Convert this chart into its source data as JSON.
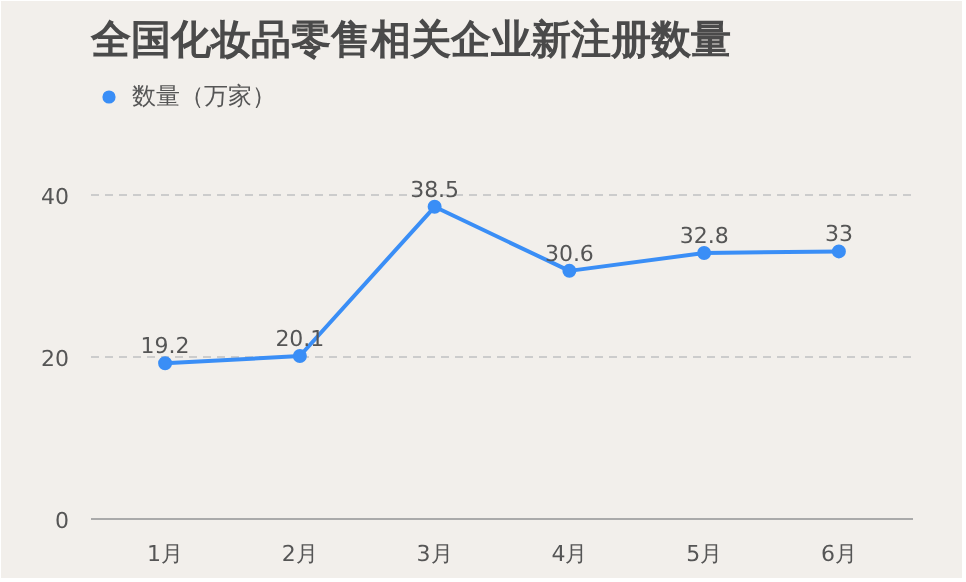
{
  "chart_data": {
    "type": "line",
    "title": "全国化妆品零售相关企业新注册数量",
    "categories": [
      "1月",
      "2月",
      "3月",
      "4月",
      "5月",
      "6月"
    ],
    "series": [
      {
        "name": "数量（万家）",
        "color": "#3a8ef6",
        "values": [
          19.2,
          20.1,
          38.5,
          30.6,
          32.8,
          33
        ]
      }
    ],
    "ylim": [
      0,
      55
    ],
    "yticks": [
      0,
      20,
      40
    ],
    "grid": "y",
    "legend": "top left",
    "marker": "circle",
    "line_style": "solid",
    "data_labels": true
  }
}
